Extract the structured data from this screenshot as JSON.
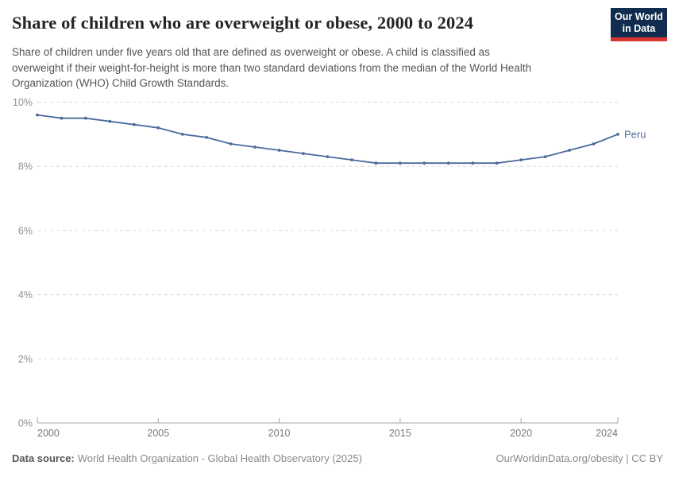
{
  "header": {
    "title": "Share of children who are overweight or obese, 2000 to 2024",
    "subtitle": "Share of children under five years old that are defined as overweight or obese. A child is classified as overweight if their weight-for-height is more than two standard deviations from the median of the World Health Organization (WHO) Child Growth Standards.",
    "subtitle_lines": [
      "Share of children under five years old that are defined as overweight or obese. A child is classified as",
      "overweight if their weight-for-height is more than two standard deviations from the median of the World Health",
      "Organization (WHO) Child Growth Standards."
    ],
    "logo": {
      "line1": "Our World",
      "line2": "in Data",
      "bg_color": "#102d50",
      "accent_color": "#d8352f"
    }
  },
  "chart_data": {
    "type": "line",
    "title": "Share of children who are overweight or obese, 2000 to 2024",
    "xlabel": "",
    "ylabel": "",
    "xlim": [
      2000,
      2024
    ],
    "ylim": [
      0,
      10
    ],
    "grid": true,
    "legend_position": "end-of-line-label",
    "x_ticks": [
      2000,
      2005,
      2010,
      2015,
      2020,
      2024
    ],
    "y_ticks": [
      {
        "value": 0,
        "label": "0%"
      },
      {
        "value": 2,
        "label": "2%"
      },
      {
        "value": 4,
        "label": "4%"
      },
      {
        "value": 6,
        "label": "6%"
      },
      {
        "value": 8,
        "label": "8%"
      },
      {
        "value": 10,
        "label": "10%"
      }
    ],
    "series": [
      {
        "name": "Peru",
        "color": "#4C6A9C",
        "x": [
          2000,
          2001,
          2002,
          2003,
          2004,
          2005,
          2006,
          2007,
          2008,
          2009,
          2010,
          2011,
          2012,
          2013,
          2014,
          2015,
          2016,
          2017,
          2018,
          2019,
          2020,
          2021,
          2022,
          2023,
          2024
        ],
        "values": [
          9.6,
          9.5,
          9.5,
          9.4,
          9.3,
          9.2,
          9.0,
          8.9,
          8.7,
          8.6,
          8.5,
          8.4,
          8.3,
          8.2,
          8.1,
          8.1,
          8.1,
          8.1,
          8.1,
          8.1,
          8.2,
          8.3,
          8.5,
          8.7,
          9.0
        ]
      }
    ]
  },
  "footer": {
    "datasource_label": "Data source:",
    "datasource_text": "World Health Organization - Global Health Observatory (2025)",
    "link_text": "OurWorldinData.org/obesity | CC BY"
  }
}
